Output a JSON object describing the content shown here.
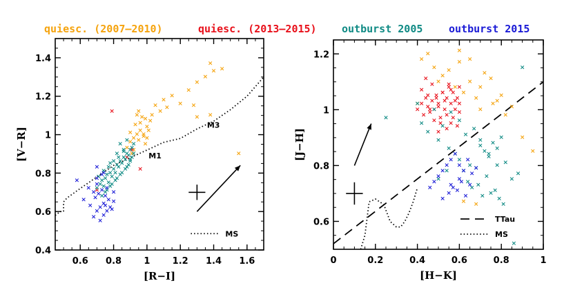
{
  "legend": {
    "entries": [
      {
        "label": "quiesc. (2007–2010)",
        "color": "#f5a30d"
      },
      {
        "label": "quiesc. (2013–2015)",
        "color": "#e8101a"
      },
      {
        "label": "outburst 2005",
        "color": "#0f8a84"
      },
      {
        "label": "outburst 2015",
        "color": "#1a1ad6"
      }
    ]
  },
  "chart_data": [
    {
      "type": "scatter",
      "xlabel": "[R−I]",
      "ylabel": "[V−R]",
      "xlim": [
        0.45,
        1.7
      ],
      "ylim": [
        0.4,
        1.5
      ],
      "xticks": [
        "0.6",
        "0.8",
        "1",
        "1.2",
        "1.4",
        "1.6"
      ],
      "yticks": [
        "0.4",
        "0.6",
        "0.8",
        "1",
        "1.2",
        "1.4"
      ],
      "marker": "×",
      "series": [
        {
          "name": "quiesc. (2007–2010)",
          "color": "#f5a30d",
          "x": [
            0.88,
            0.9,
            0.92,
            0.94,
            0.96,
            0.98,
            1.0,
            1.02,
            0.9,
            0.93,
            0.95,
            0.97,
            0.99,
            1.01,
            0.92,
            0.94,
            0.96,
            0.98,
            1.0,
            0.91,
            0.95,
            0.99,
            1.03,
            1.05,
            1.08,
            1.1,
            1.12,
            1.15,
            1.2,
            1.25,
            1.3,
            1.35,
            1.38,
            1.4,
            1.45,
            1.38,
            1.3,
            1.28,
            1.55
          ],
          "y": [
            0.93,
            0.96,
            0.98,
            1.0,
            1.02,
            0.99,
            1.04,
            1.07,
            1.01,
            1.05,
            0.97,
            1.09,
            0.95,
            1.02,
            0.92,
            1.1,
            1.06,
            1.0,
            0.98,
            0.9,
            1.12,
            1.08,
            1.1,
            1.15,
            1.12,
            1.18,
            1.14,
            1.2,
            1.16,
            1.23,
            1.27,
            1.3,
            1.37,
            1.33,
            1.34,
            1.1,
            1.09,
            1.15,
            0.9
          ]
        },
        {
          "name": "quiesc. (2013–2015)",
          "color": "#e8101a",
          "x": [
            0.79,
            0.88,
            0.96,
            0.7,
            0.91
          ],
          "y": [
            1.12,
            0.88,
            0.82,
            0.71,
            0.92
          ]
        },
        {
          "name": "outburst 2005",
          "color": "#0f8a84",
          "x": [
            0.7,
            0.72,
            0.73,
            0.74,
            0.75,
            0.76,
            0.77,
            0.78,
            0.79,
            0.8,
            0.81,
            0.82,
            0.83,
            0.84,
            0.85,
            0.86,
            0.87,
            0.88,
            0.89,
            0.9,
            0.91,
            0.92,
            0.71,
            0.74,
            0.77,
            0.8,
            0.83,
            0.86,
            0.89,
            0.92,
            0.75,
            0.78,
            0.81,
            0.84,
            0.87,
            0.9,
            0.73,
            0.76,
            0.79,
            0.82,
            0.85,
            0.88,
            0.91,
            0.78,
            0.82,
            0.86,
            0.9,
            0.84,
            0.88
          ],
          "y": [
            0.72,
            0.74,
            0.76,
            0.73,
            0.77,
            0.79,
            0.75,
            0.8,
            0.78,
            0.82,
            0.8,
            0.84,
            0.83,
            0.86,
            0.85,
            0.88,
            0.87,
            0.9,
            0.89,
            0.92,
            0.93,
            0.95,
            0.78,
            0.81,
            0.83,
            0.86,
            0.88,
            0.91,
            0.84,
            0.9,
            0.7,
            0.73,
            0.76,
            0.79,
            0.82,
            0.86,
            0.68,
            0.71,
            0.74,
            0.77,
            0.8,
            0.83,
            0.88,
            0.85,
            0.9,
            0.92,
            0.87,
            0.95,
            0.97
          ]
        },
        {
          "name": "outburst 2015",
          "color": "#1a1ad6",
          "x": [
            0.58,
            0.62,
            0.65,
            0.68,
            0.7,
            0.72,
            0.74,
            0.76,
            0.78,
            0.8,
            0.69,
            0.71,
            0.73,
            0.75,
            0.77,
            0.79,
            0.68,
            0.7,
            0.72,
            0.74,
            0.76,
            0.66,
            0.7,
            0.74,
            0.7,
            0.73,
            0.75,
            0.8
          ],
          "y": [
            0.76,
            0.66,
            0.72,
            0.7,
            0.74,
            0.62,
            0.64,
            0.6,
            0.62,
            0.65,
            0.67,
            0.69,
            0.71,
            0.63,
            0.66,
            0.61,
            0.57,
            0.6,
            0.55,
            0.58,
            0.72,
            0.63,
            0.77,
            0.8,
            0.83,
            0.79,
            0.68,
            0.7
          ]
        }
      ],
      "annotations": [
        {
          "text": "M1",
          "x": 1.01,
          "y": 0.89
        },
        {
          "text": "M3",
          "x": 1.36,
          "y": 1.05
        },
        {
          "text": "MS",
          "x": 1.47,
          "y": 0.485
        }
      ],
      "ms_curve": {
        "x": [
          0.45,
          0.48,
          0.5,
          0.5,
          0.52,
          0.6,
          0.7,
          0.8,
          0.9,
          1.0,
          1.1,
          1.2,
          1.3,
          1.4,
          1.5,
          1.6,
          1.65,
          1.7
        ],
        "y": [
          0.58,
          0.6,
          0.6,
          0.65,
          0.67,
          0.72,
          0.78,
          0.84,
          0.88,
          0.92,
          0.96,
          0.98,
          1.03,
          1.07,
          1.13,
          1.2,
          1.25,
          1.3
        ]
      },
      "reddening_vector": {
        "x0": 1.3,
        "y0": 0.6,
        "x1": 1.56,
        "y1": 0.84
      },
      "error_bar": {
        "x": 1.3,
        "y": 0.7,
        "dx": 0.05,
        "dy": 0.04
      }
    },
    {
      "type": "scatter",
      "xlabel": "[H−K]",
      "ylabel": "[J−H]",
      "xlim": [
        0,
        1
      ],
      "ylim": [
        0.5,
        1.25
      ],
      "xticks": [
        "0",
        "0.2",
        "0.4",
        "0.6",
        "0.8",
        "1"
      ],
      "yticks": [
        "0.6",
        "0.8",
        "1",
        "1.2"
      ],
      "marker": "×",
      "series": [
        {
          "name": "quiesc. (2007–2010)",
          "color": "#f5a30d",
          "x": [
            0.4,
            0.42,
            0.45,
            0.48,
            0.5,
            0.52,
            0.55,
            0.58,
            0.6,
            0.62,
            0.65,
            0.68,
            0.7,
            0.72,
            0.75,
            0.78,
            0.8,
            0.85,
            0.9,
            0.95,
            0.6,
            0.65,
            0.7,
            0.76,
            0.82,
            0.62,
            0.68
          ],
          "y": [
            1.02,
            1.18,
            1.2,
            1.15,
            1.1,
            1.12,
            1.14,
            1.08,
            1.17,
            1.06,
            1.1,
            1.04,
            1.08,
            1.13,
            1.11,
            1.03,
            1.05,
            1.01,
            0.9,
            0.85,
            1.21,
            1.18,
            1.0,
            1.02,
            0.98,
            0.67,
            0.66
          ]
        },
        {
          "name": "quiesc. (2013–2015)",
          "color": "#e8101a",
          "x": [
            0.4,
            0.42,
            0.43,
            0.44,
            0.45,
            0.46,
            0.47,
            0.48,
            0.49,
            0.5,
            0.51,
            0.52,
            0.53,
            0.54,
            0.55,
            0.56,
            0.57,
            0.58,
            0.59,
            0.6,
            0.42,
            0.45,
            0.48,
            0.51,
            0.54,
            0.57,
            0.6,
            0.44,
            0.47,
            0.5,
            0.53,
            0.56,
            0.59,
            0.46,
            0.49,
            0.52,
            0.55,
            0.58,
            0.5,
            0.54,
            0.56,
            0.6
          ],
          "y": [
            1.0,
            1.02,
            0.98,
            1.04,
            1.01,
            0.99,
            1.03,
            1.0,
            1.05,
            1.02,
            0.97,
            1.06,
            1.0,
            1.04,
            1.08,
            1.02,
            1.06,
            1.0,
            1.04,
            1.08,
            1.07,
            1.05,
            0.96,
            0.95,
            0.98,
            0.97,
            1.02,
            1.11,
            1.09,
            1.01,
            1.03,
            1.07,
            0.94,
            1.0,
            1.04,
            1.06,
            1.09,
            1.03,
            0.92,
            0.93,
            0.95,
            0.99
          ]
        },
        {
          "name": "outburst 2005",
          "color": "#0f8a84",
          "x": [
            0.25,
            0.4,
            0.42,
            0.45,
            0.48,
            0.5,
            0.52,
            0.55,
            0.58,
            0.6,
            0.62,
            0.65,
            0.68,
            0.7,
            0.72,
            0.74,
            0.76,
            0.78,
            0.8,
            0.82,
            0.85,
            0.88,
            0.9,
            0.64,
            0.66,
            0.69,
            0.71,
            0.73,
            0.75,
            0.77,
            0.79,
            0.81,
            0.56,
            0.6,
            0.63,
            0.67,
            0.7,
            0.74,
            0.78,
            0.86,
            0.5,
            0.54
          ],
          "y": [
            0.97,
            1.02,
            0.95,
            0.92,
            1.0,
            0.89,
            0.94,
            0.86,
            0.84,
            0.82,
            0.78,
            0.8,
            0.79,
            0.87,
            0.85,
            0.83,
            0.88,
            0.86,
            0.9,
            0.81,
            0.75,
            0.77,
            1.15,
            0.74,
            0.72,
            0.73,
            0.69,
            0.76,
            0.7,
            0.71,
            0.68,
            0.66,
            0.99,
            0.96,
            0.91,
            0.93,
            0.89,
            0.84,
            0.8,
            0.52,
            0.75,
            0.78
          ]
        },
        {
          "name": "outburst 2015",
          "color": "#1a1ad6",
          "x": [
            0.46,
            0.48,
            0.5,
            0.52,
            0.54,
            0.56,
            0.58,
            0.6,
            0.62,
            0.64,
            0.66,
            0.68,
            0.55,
            0.57,
            0.59,
            0.61,
            0.63,
            0.65,
            0.52,
            0.56,
            0.6
          ],
          "y": [
            0.72,
            0.74,
            0.76,
            0.78,
            0.8,
            0.82,
            0.84,
            0.8,
            0.78,
            0.82,
            0.77,
            0.79,
            0.7,
            0.72,
            0.71,
            0.74,
            0.69,
            0.73,
            0.68,
            0.73,
            0.75
          ]
        }
      ],
      "ttau_line": {
        "x0": 0,
        "y0": 0.52,
        "x1": 1,
        "y1": 1.1
      },
      "ms_curve": {
        "x": [
          0.13,
          0.15,
          0.17,
          0.2,
          0.24,
          0.27,
          0.3,
          0.32,
          0.34,
          0.36,
          0.38,
          0.4
        ],
        "y": [
          0.5,
          0.55,
          0.67,
          0.68,
          0.66,
          0.6,
          0.58,
          0.58,
          0.6,
          0.63,
          0.67,
          0.72
        ]
      },
      "legend_lines": [
        {
          "text": "TTau",
          "style": "dashed"
        },
        {
          "text": "MS",
          "style": "dotted"
        }
      ],
      "reddening_vector": {
        "x0": 0.1,
        "y0": 0.8,
        "x1": 0.18,
        "y1": 0.95
      },
      "error_bar": {
        "x": 0.1,
        "y": 0.7,
        "dx": 0.04,
        "dy": 0.04
      }
    }
  ]
}
